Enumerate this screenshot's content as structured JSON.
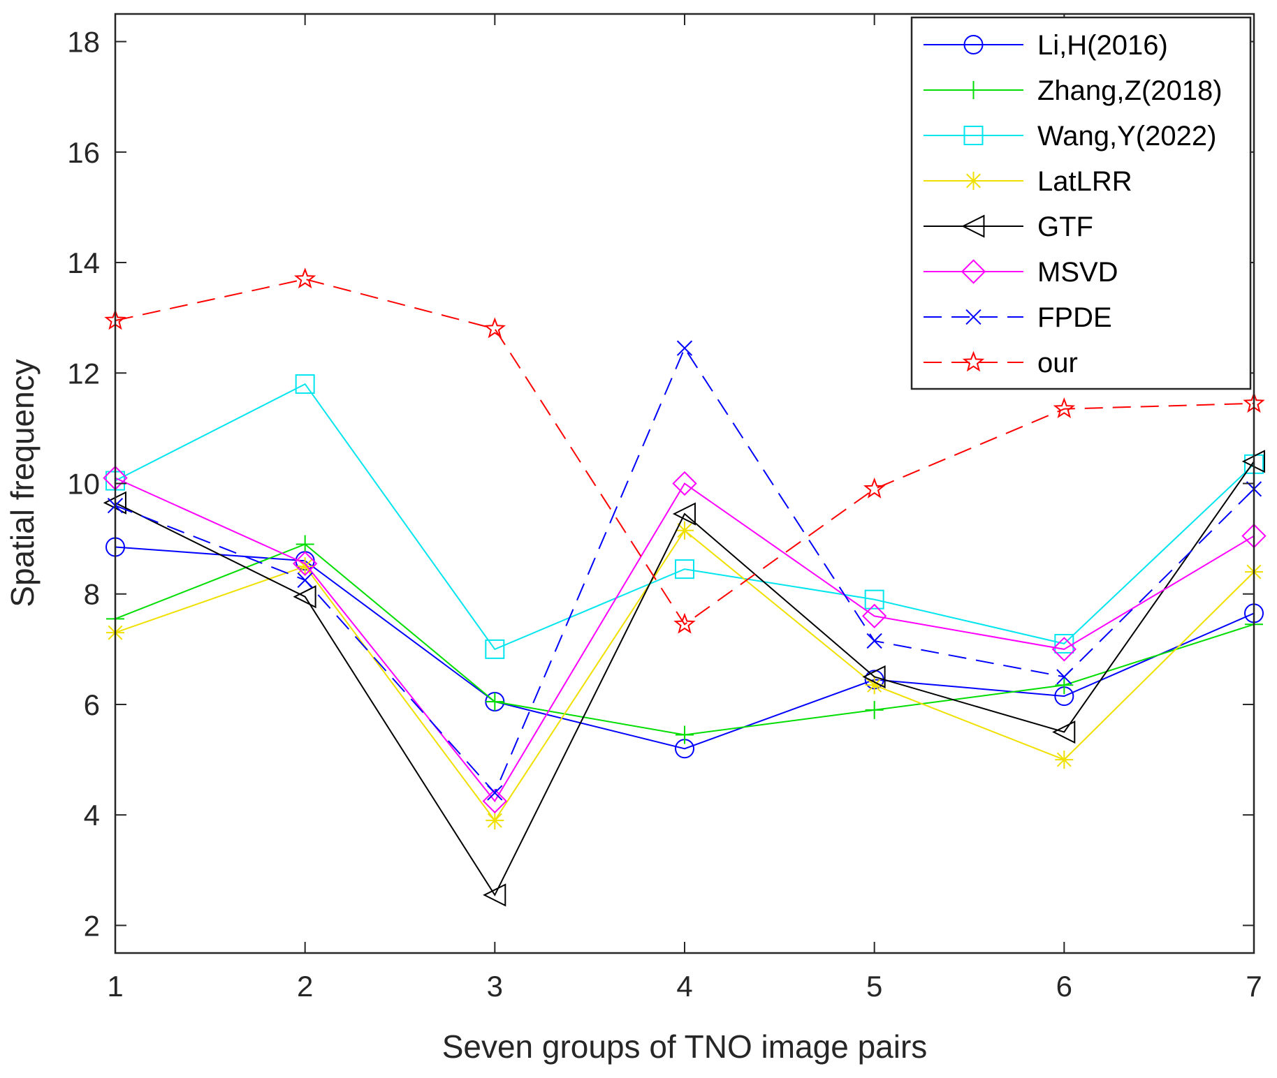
{
  "chart_data": {
    "type": "line",
    "title": "",
    "xlabel": "Seven groups of TNO image pairs",
    "ylabel": "Spatial frequency",
    "x": [
      1,
      2,
      3,
      4,
      5,
      6,
      7
    ],
    "xlim": [
      1,
      7
    ],
    "ylim": [
      1.5,
      18.5
    ],
    "xticks": [
      1,
      2,
      3,
      4,
      5,
      6,
      7
    ],
    "yticks": [
      2,
      4,
      6,
      8,
      10,
      12,
      14,
      16,
      18
    ],
    "grid": false,
    "legend_position": "top-right",
    "series": [
      {
        "name": "Li,H(2016)",
        "color": "#0000ff",
        "marker": "circle",
        "dash": "solid",
        "values": [
          8.85,
          8.6,
          6.05,
          5.2,
          6.45,
          6.15,
          7.65
        ]
      },
      {
        "name": "Zhang,Z(2018)",
        "color": "#00dd00",
        "marker": "plus",
        "dash": "solid",
        "values": [
          7.55,
          8.9,
          6.05,
          5.45,
          5.9,
          6.35,
          7.45
        ]
      },
      {
        "name": "Wang,Y(2022)",
        "color": "#00e5ee",
        "marker": "square",
        "dash": "solid",
        "values": [
          10.05,
          11.8,
          7.0,
          8.45,
          7.9,
          7.1,
          10.35
        ]
      },
      {
        "name": "LatLRR",
        "color": "#f0e000",
        "marker": "asterisk",
        "dash": "solid",
        "values": [
          7.3,
          8.5,
          3.9,
          9.15,
          6.35,
          5.0,
          8.4
        ]
      },
      {
        "name": "GTF",
        "color": "#000000",
        "marker": "triangle-left",
        "dash": "solid",
        "values": [
          9.65,
          7.95,
          2.55,
          9.45,
          6.5,
          5.5,
          10.4
        ]
      },
      {
        "name": "MSVD",
        "color": "#ff00ff",
        "marker": "diamond",
        "dash": "solid",
        "values": [
          10.1,
          8.55,
          4.25,
          10.0,
          7.6,
          7.0,
          9.05
        ]
      },
      {
        "name": "FPDE",
        "color": "#0000ff",
        "marker": "x",
        "dash": "dashed",
        "values": [
          9.6,
          8.25,
          4.4,
          12.45,
          7.15,
          6.5,
          9.9
        ]
      },
      {
        "name": "our",
        "color": "#ff0000",
        "marker": "star",
        "dash": "dashed",
        "values": [
          12.95,
          13.7,
          12.8,
          7.45,
          9.9,
          11.35,
          11.45
        ]
      }
    ]
  }
}
